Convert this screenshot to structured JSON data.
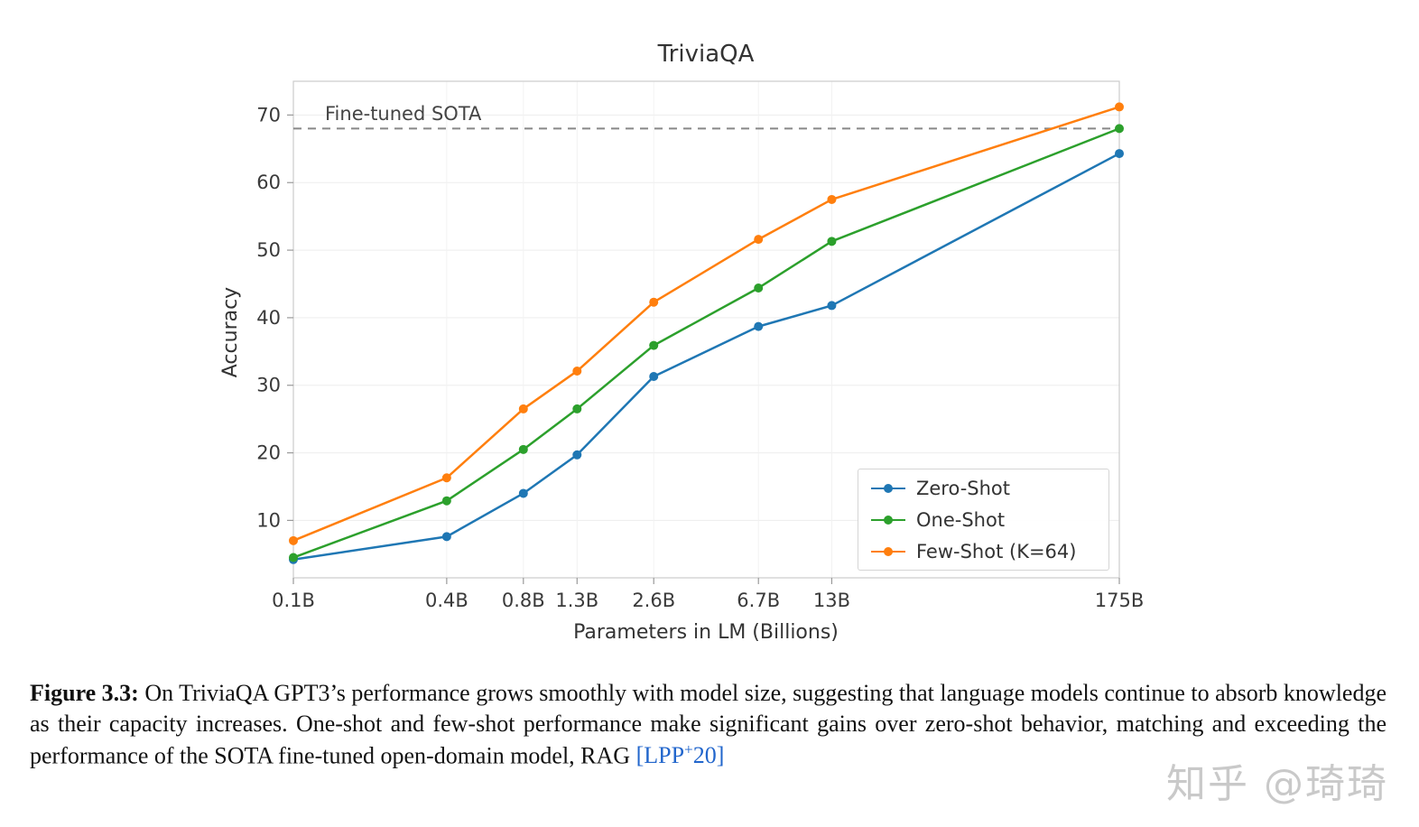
{
  "chart_data": {
    "type": "line",
    "title": "TriviaQA",
    "xlabel": "Parameters in LM (Billions)",
    "ylabel": "Accuracy",
    "x_scale": "log",
    "grid": true,
    "legend_position": "lower right",
    "x": [
      0.1,
      0.4,
      0.8,
      1.3,
      2.6,
      6.7,
      13,
      175
    ],
    "x_tick_labels": [
      "0.1B",
      "0.4B",
      "0.8B",
      "1.3B",
      "2.6B",
      "6.7B",
      "13B",
      "175B"
    ],
    "xlim": [
      0.1,
      175
    ],
    "y_ticks": [
      10,
      20,
      30,
      40,
      50,
      60,
      70
    ],
    "ylim": [
      1.5,
      75
    ],
    "reference_line": {
      "label": "Fine-tuned SOTA",
      "value": 68,
      "style": "dashed",
      "color": "#888888"
    },
    "series": [
      {
        "name": "Zero-Shot",
        "color": "#1f77b4",
        "values": [
          4.2,
          7.6,
          14.0,
          19.7,
          31.3,
          38.7,
          41.8,
          64.3
        ]
      },
      {
        "name": "One-Shot",
        "color": "#2ca02c",
        "values": [
          4.5,
          12.9,
          20.5,
          26.5,
          35.9,
          44.4,
          51.3,
          68.0
        ]
      },
      {
        "name": "Few-Shot (K=64)",
        "color": "#ff7f0e",
        "values": [
          7.0,
          16.3,
          26.5,
          32.1,
          42.3,
          51.6,
          57.5,
          71.2
        ]
      }
    ]
  },
  "caption": {
    "label": "Figure 3.3:",
    "text": " On TriviaQA GPT3’s performance grows smoothly with model size, suggesting that language models continue to absorb knowledge as their capacity increases. One-shot and few-shot performance make significant gains over zero-shot behavior, matching and exceeding the performance of the SOTA fine-tuned open-domain model, RAG ",
    "citation": {
      "open": "[LPP",
      "sup": "+",
      "close": "20]"
    }
  },
  "watermark": {
    "text": "知乎 @琦琦"
  }
}
